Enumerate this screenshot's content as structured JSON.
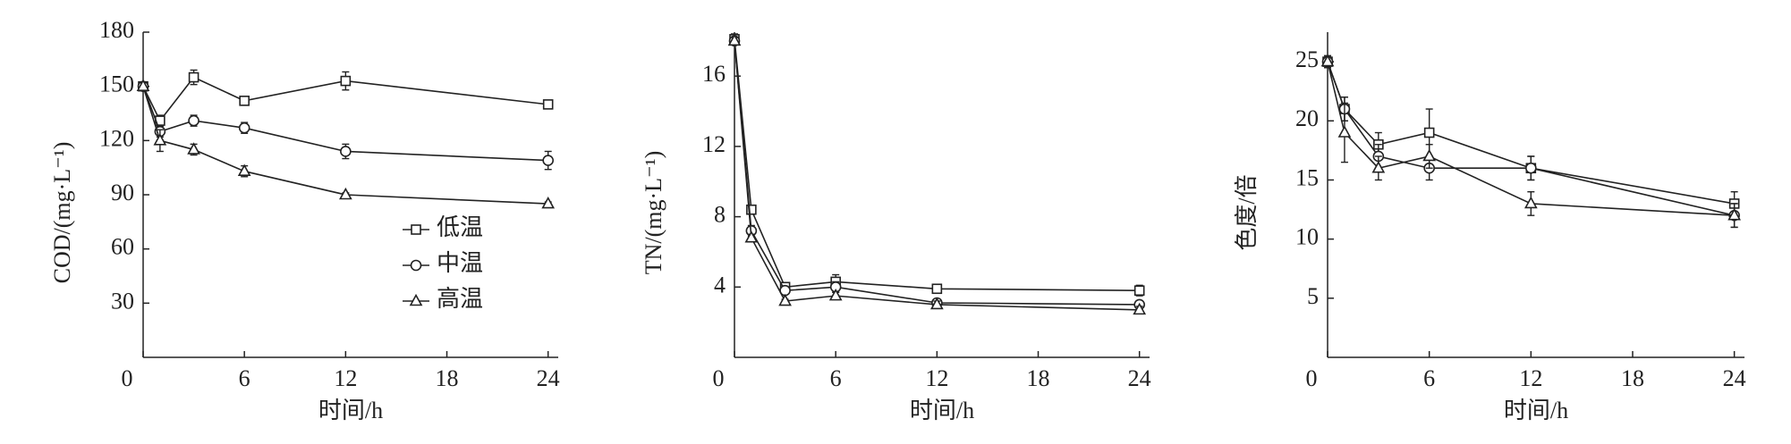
{
  "chart_data": [
    {
      "type": "line",
      "y_label": "COD/(mg·L⁻¹)",
      "x_label": "时间/h",
      "x": [
        0,
        1,
        3,
        6,
        12,
        24
      ],
      "xlim": [
        0,
        24.6
      ],
      "xticks": [
        0,
        6,
        12,
        18,
        24
      ],
      "ylim": [
        0,
        180
      ],
      "yticks": [
        30,
        60,
        90,
        120,
        150,
        180
      ],
      "series": [
        {
          "name": "低温",
          "marker": "square",
          "color": "#222222",
          "values": [
            150,
            131,
            155,
            142,
            153,
            140
          ],
          "errors": [
            2,
            3,
            4,
            2,
            5,
            2
          ]
        },
        {
          "name": "中温",
          "marker": "circle",
          "color": "#222222",
          "values": [
            150,
            125,
            131,
            127,
            114,
            109
          ],
          "errors": [
            2,
            3,
            3,
            3,
            4,
            5
          ]
        },
        {
          "name": "高温",
          "marker": "triangle",
          "color": "#222222",
          "values": [
            150,
            120,
            115,
            103,
            90,
            85
          ],
          "errors": [
            2,
            6,
            3,
            3,
            1,
            1
          ]
        }
      ]
    },
    {
      "type": "line",
      "y_label": "TN/(mg·L⁻¹)",
      "x_label": "时间/h",
      "x": [
        0,
        1,
        3,
        6,
        12,
        24
      ],
      "xlim": [
        0,
        24.6
      ],
      "xticks": [
        0,
        6,
        12,
        18,
        24
      ],
      "ylim": [
        0,
        18.5
      ],
      "yticks": [
        4,
        8,
        12,
        16
      ],
      "series": [
        {
          "marker": "square",
          "color": "#222222",
          "values": [
            18.1,
            8.4,
            4.0,
            4.3,
            3.9,
            3.8
          ],
          "errors": [
            0.3,
            0.2,
            0.2,
            0.4,
            0.2,
            0.3
          ]
        },
        {
          "marker": "circle",
          "color": "#222222",
          "values": [
            18.0,
            7.2,
            3.8,
            4.0,
            3.1,
            3.0
          ],
          "errors": [
            0.2,
            0.3,
            0.2,
            0.3,
            0.2,
            0.2
          ]
        },
        {
          "marker": "triangle",
          "color": "#222222",
          "values": [
            18.0,
            6.8,
            3.2,
            3.5,
            3.0,
            2.7
          ],
          "errors": [
            0.2,
            0.2,
            0.1,
            0.2,
            0.2,
            0.2
          ]
        }
      ]
    },
    {
      "type": "line",
      "y_label": "色度/倍",
      "x_label": "时间/h",
      "x": [
        0,
        1,
        3,
        6,
        12,
        24
      ],
      "xlim": [
        0,
        24.6
      ],
      "xticks": [
        0,
        6,
        12,
        18,
        24
      ],
      "ylim": [
        0,
        27.5
      ],
      "yticks": [
        5,
        10,
        15,
        20,
        25
      ],
      "series": [
        {
          "marker": "square",
          "color": "#222222",
          "values": [
            25,
            21,
            18,
            19,
            16,
            13
          ],
          "errors": [
            0.5,
            1,
            1,
            2,
            1,
            1
          ]
        },
        {
          "marker": "circle",
          "color": "#222222",
          "values": [
            25,
            21,
            17,
            16,
            16,
            12
          ],
          "errors": [
            0.5,
            1,
            1,
            1,
            1,
            1
          ]
        },
        {
          "marker": "triangle",
          "color": "#222222",
          "values": [
            25,
            19,
            16,
            17,
            13,
            12
          ],
          "errors": [
            0.5,
            2.5,
            1,
            1,
            1,
            1
          ]
        }
      ]
    }
  ]
}
